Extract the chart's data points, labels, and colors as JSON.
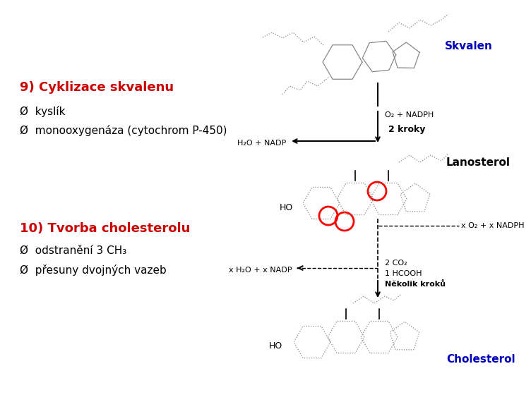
{
  "bg_color": "#ffffff",
  "title1": "9) Cyklizace skvalenu",
  "bullet1_1": "Ø  kyslík",
  "bullet1_2": "Ø  monooxygenáza (cytochrom P-450)",
  "title2": "10) Tvorba cholesterolu",
  "bullet2_1": "Ø  odstranění 3 CH₃",
  "bullet2_2": "Ø  přesuny dvojných vazeb",
  "title_color": "#cc0000",
  "bullet_color": "#000000",
  "label_skvalen": "Skvalen",
  "label_lanosterol": "Lanosterol",
  "label_cholesterol": "Cholesterol",
  "skvalen_color": "#0000bb",
  "lanosterol_color": "#000000",
  "cholesterol_color": "#0000bb",
  "label_o2nadph": "O₂ + NADPH",
  "label_h2onadp": "H₂O + NADP",
  "label_2kroky": "2 kroky",
  "label_xo2nadph": "x O₂ + x NADPH",
  "label_xh2onadp": "x H₂O + x NADP",
  "label_2co2": "2 CO₂",
  "label_1hcooh": "1 HCOOH",
  "label_nkolik": "Několik kroků"
}
